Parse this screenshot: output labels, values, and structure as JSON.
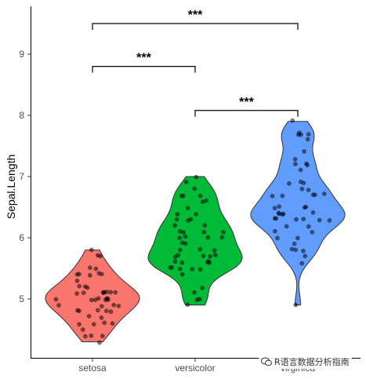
{
  "chart_data": {
    "type": "violin",
    "xlabel": "",
    "ylabel": "Sepal.Length",
    "ylim": [
      4.1,
      9.8
    ],
    "yticks": [
      5,
      6,
      7,
      8,
      9
    ],
    "categories": [
      "setosa",
      "versicolor",
      "virginica"
    ],
    "series": [
      {
        "category": "setosa",
        "color": "#F8766D",
        "min": 4.3,
        "max": 5.8,
        "points": [
          5.1,
          4.9,
          4.7,
          4.6,
          5.0,
          5.4,
          4.6,
          5.0,
          4.4,
          4.9,
          5.4,
          4.8,
          4.8,
          4.3,
          5.8,
          5.7,
          5.4,
          5.1,
          5.7,
          5.1,
          5.4,
          5.1,
          4.6,
          5.1,
          4.8,
          5.0,
          5.0,
          5.2,
          5.2,
          4.7,
          4.8,
          5.4,
          5.2,
          5.5,
          4.9,
          5.0,
          5.5,
          4.9,
          4.4,
          5.1,
          5.0,
          4.5,
          4.4,
          5.0,
          5.1,
          4.8,
          5.1,
          4.6,
          5.3,
          5.0
        ]
      },
      {
        "category": "versicolor",
        "color": "#00BA38",
        "min": 4.9,
        "max": 7.0,
        "points": [
          7.0,
          6.4,
          6.9,
          5.5,
          6.5,
          5.7,
          6.3,
          4.9,
          6.6,
          5.2,
          5.0,
          5.9,
          6.0,
          6.1,
          5.6,
          6.7,
          5.6,
          5.8,
          6.2,
          5.6,
          5.9,
          6.1,
          6.3,
          6.1,
          6.4,
          6.6,
          6.8,
          6.7,
          6.0,
          5.7,
          5.5,
          5.5,
          5.8,
          6.0,
          5.4,
          6.0,
          6.7,
          6.3,
          5.6,
          5.5,
          5.5,
          6.1,
          5.8,
          5.0,
          5.6,
          5.7,
          5.7,
          6.2,
          5.1,
          5.7
        ]
      },
      {
        "category": "virginica",
        "color": "#619CFF",
        "min": 4.9,
        "max": 7.9,
        "points": [
          6.3,
          5.8,
          7.1,
          6.3,
          6.5,
          7.6,
          4.9,
          7.3,
          6.7,
          7.2,
          6.5,
          6.4,
          6.8,
          5.7,
          5.8,
          6.4,
          6.5,
          7.7,
          7.7,
          6.0,
          6.9,
          5.6,
          7.7,
          6.3,
          6.7,
          7.2,
          6.2,
          6.1,
          6.4,
          7.2,
          7.4,
          7.9,
          6.4,
          6.3,
          6.1,
          7.7,
          6.3,
          6.4,
          6.0,
          6.9,
          6.7,
          6.9,
          5.8,
          6.8,
          6.7,
          6.7,
          6.3,
          6.5,
          6.2,
          5.9
        ]
      }
    ],
    "comparisons": [
      {
        "from": "setosa",
        "to": "versicolor",
        "y": 8.8,
        "label": "***"
      },
      {
        "from": "versicolor",
        "to": "virginica",
        "y": 8.08,
        "label": "***"
      },
      {
        "from": "setosa",
        "to": "virginica",
        "y": 9.5,
        "label": "***"
      }
    ],
    "grid": false,
    "legend": "none"
  },
  "watermark": {
    "text": "R语言数据分析指南",
    "icon": "wechat-icon"
  }
}
